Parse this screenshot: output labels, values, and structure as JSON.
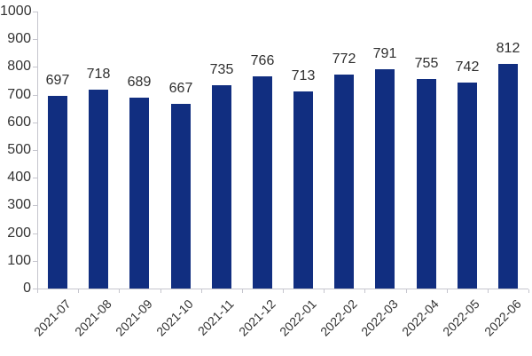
{
  "chart_data": {
    "type": "bar",
    "title": "",
    "xlabel": "",
    "ylabel": "",
    "categories": [
      "2021-07",
      "2021-08",
      "2021-09",
      "2021-10",
      "2021-11",
      "2021-12",
      "2022-01",
      "2022-02",
      "2022-03",
      "2022-04",
      "2022-05",
      "2022-06"
    ],
    "values": [
      697,
      718,
      689,
      667,
      735,
      766,
      713,
      772,
      791,
      755,
      742,
      812
    ],
    "data_labels_shown": true,
    "ylim": [
      0,
      1000
    ],
    "ytick_step": 100,
    "ytick_labels": [
      "0",
      "100",
      "200",
      "300",
      "400",
      "500",
      "600",
      "700",
      "800",
      "900",
      "1000"
    ],
    "grid": false,
    "legend": null,
    "xtick_rotation_deg": 45,
    "colors": {
      "bar": "#112e80",
      "axis": "#c6c6ce",
      "tick_label": "#333333",
      "data_label": "#2e2e2e",
      "background": "#ffffff"
    }
  }
}
